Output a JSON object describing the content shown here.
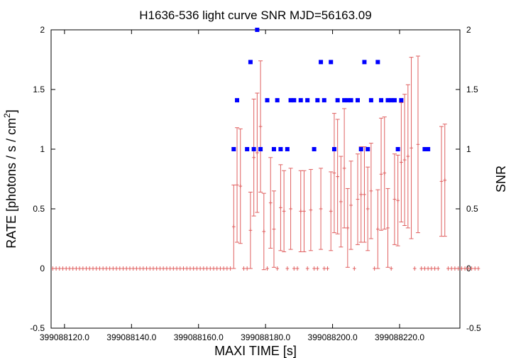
{
  "chart_data": {
    "type": "scatter",
    "title": "H1636-536 light curve  SNR MJD=56163.09",
    "xlabel": "MAXI TIME [s]",
    "ylabel": "RATE [photons / s / cm",
    "ylabel_sup": "2",
    "ylabel_end": "]",
    "y2label": "SNR",
    "xlim": [
      399088116.0,
      399088238.0
    ],
    "ylim": [
      -0.5,
      2
    ],
    "y2lim": [
      -0.5,
      2
    ],
    "x_ticks": [
      {
        "value": 399088120,
        "label": "399088120.0"
      },
      {
        "value": 399088140,
        "label": "399088140.0"
      },
      {
        "value": 399088160,
        "label": "399088160.0"
      },
      {
        "value": 399088180,
        "label": "399088180.0"
      },
      {
        "value": 399088200,
        "label": "399088200.0"
      },
      {
        "value": 399088220,
        "label": "399088220.0"
      }
    ],
    "y_ticks": [
      {
        "value": -0.5,
        "label": "-0.5"
      },
      {
        "value": 0,
        "label": "0"
      },
      {
        "value": 0.5,
        "label": "0.5"
      },
      {
        "value": 1,
        "label": "1"
      },
      {
        "value": 1.5,
        "label": "1.5"
      },
      {
        "value": 2,
        "label": "2"
      }
    ],
    "y2_ticks": [
      {
        "value": -0.5,
        "label": "-0.5"
      },
      {
        "value": 0,
        "label": "0"
      },
      {
        "value": 0.5,
        "label": "0.5"
      },
      {
        "value": 1,
        "label": "1"
      },
      {
        "value": 1.5,
        "label": "1.5"
      },
      {
        "value": 2,
        "label": "2"
      }
    ],
    "grid": false,
    "colors": {
      "rate": "#e06060",
      "snr": "#0000ff"
    },
    "series": [
      {
        "key": "rate",
        "style": "error-bars",
        "x_start": 399088116.0,
        "x_step": 1.0,
        "values": [
          0,
          0,
          0,
          0,
          0,
          0,
          0,
          0,
          0,
          0,
          0,
          0,
          0,
          0,
          0,
          0,
          0,
          0,
          0,
          0,
          0,
          0,
          0,
          0,
          0,
          0,
          0,
          0,
          0,
          0,
          0,
          0,
          0,
          0,
          0,
          0,
          0,
          0,
          0,
          0,
          0,
          0,
          0,
          0,
          0,
          0,
          0,
          0,
          0,
          0,
          0,
          0,
          0,
          0,
          0.35,
          0.7,
          0.69,
          0,
          0,
          0.32,
          0.93,
          0.97,
          1.19,
          0.31,
          0,
          0.55,
          0.33,
          0,
          0.51,
          0.48,
          0,
          0.5,
          0,
          0,
          0.48,
          0.48,
          0,
          0.49,
          0,
          0,
          0.5,
          0,
          0,
          0.48,
          0.8,
          0.77,
          0.56,
          0.84,
          0.34,
          0.53,
          0,
          0.58,
          0.62,
          0.62,
          0.5,
          0.65,
          0,
          0.33,
          0.79,
          0.8,
          0.34,
          0,
          0.58,
          0.57,
          0.89,
          0.91,
          0.94,
          1.01,
          0,
          1.04,
          0,
          0,
          0,
          0,
          0,
          0,
          0.73,
          0.74,
          0,
          0,
          0,
          0,
          0,
          0,
          0,
          0,
          0,
          0
        ],
        "errors": [
          0,
          0,
          0,
          0,
          0,
          0,
          0,
          0,
          0,
          0,
          0,
          0,
          0,
          0,
          0,
          0,
          0,
          0,
          0,
          0,
          0,
          0,
          0,
          0,
          0,
          0,
          0,
          0,
          0,
          0,
          0,
          0,
          0,
          0,
          0,
          0,
          0,
          0,
          0,
          0,
          0,
          0,
          0,
          0,
          0,
          0,
          0,
          0,
          0,
          0,
          0,
          0,
          0,
          0,
          0.35,
          0.48,
          0.48,
          0,
          0,
          0.32,
          0.49,
          0.5,
          0.55,
          0.32,
          0,
          0.38,
          0.32,
          0,
          0.36,
          0.34,
          0,
          0.34,
          0,
          0,
          0.34,
          0.34,
          0,
          0.34,
          0,
          0,
          0.34,
          0,
          0,
          0.33,
          0.5,
          0.48,
          0.38,
          0.5,
          0.33,
          0.37,
          0,
          0.38,
          0.4,
          0.4,
          0.35,
          0.4,
          0,
          0.33,
          0.47,
          0.47,
          0.33,
          0,
          0.38,
          0.38,
          0.5,
          0.55,
          0.6,
          0.76,
          0,
          0.74,
          0,
          0,
          0,
          0,
          0,
          0,
          0.46,
          0.47,
          0,
          0,
          0,
          0,
          0,
          0,
          0,
          0,
          0,
          0
        ]
      },
      {
        "key": "snr",
        "style": "points",
        "axis": "y2",
        "x": [
          399088170.5,
          399088171.5,
          399088174.5,
          399088175.5,
          399088176.5,
          399088177.5,
          399088178.5,
          399088180.5,
          399088182.5,
          399088183.5,
          399088184.5,
          399088186.5,
          399088187.5,
          399088188.5,
          399088190.5,
          399088192.5,
          399088194.5,
          399088195.5,
          399088196.5,
          399088197.5,
          399088199.5,
          399088200.5,
          399088201.5,
          399088203.5,
          399088204.5,
          399088205.5,
          399088207.5,
          399088208.5,
          399088209.5,
          399088210.5,
          399088211.5,
          399088213.5,
          399088214.5,
          399088216.5,
          399088217.5,
          399088218.5,
          399088219.5,
          399088220.5,
          399088227.5,
          399088228.5
        ],
        "values": [
          1,
          1.41,
          1,
          1.73,
          1,
          2,
          1,
          1.41,
          1,
          1.41,
          1,
          1,
          1.41,
          1.41,
          1.41,
          1.41,
          1,
          1.41,
          1.73,
          1.41,
          1.73,
          1,
          1.41,
          1.41,
          1.41,
          1.41,
          1.41,
          1,
          1.73,
          1,
          1.41,
          1.73,
          1.41,
          1.41,
          1.41,
          1.41,
          1,
          1.41,
          1,
          1
        ]
      }
    ]
  }
}
